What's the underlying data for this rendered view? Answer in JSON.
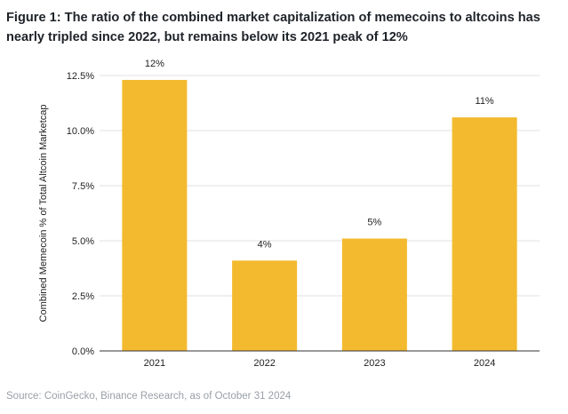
{
  "title": "Figure 1: The ratio of the combined market capitalization of memecoins to altcoins has nearly tripled since 2022, but remains below its 2021 peak of 12%",
  "source": "Source: CoinGecko, Binance Research, as of October 31 2024",
  "colors": {
    "bar": "#F3BA2F",
    "grid": "#e2e2e2",
    "axis": "#333333",
    "text": "#222222"
  },
  "chart_data": {
    "type": "bar",
    "categories": [
      "2021",
      "2022",
      "2023",
      "2024"
    ],
    "values": [
      12.3,
      4.1,
      5.1,
      10.6
    ],
    "data_labels": [
      "12%",
      "4%",
      "5%",
      "11%"
    ],
    "xlabel": "",
    "ylabel": "Combined Memecoin % of Total Altcoin Marketcap",
    "ylim": [
      0,
      12.5
    ],
    "yticks": [
      0,
      2.5,
      5,
      7.5,
      10,
      12.5
    ],
    "ytick_labels": [
      "0.0%",
      "2.5%",
      "5.0%",
      "7.5%",
      "10.0%",
      "12.5%"
    ],
    "grid": true,
    "legend": "none"
  }
}
